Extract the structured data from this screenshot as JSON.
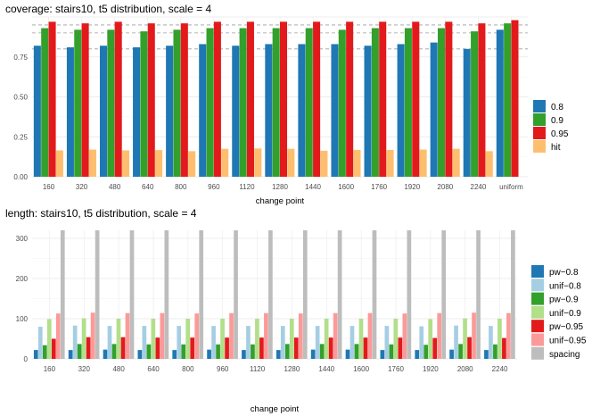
{
  "chart_data": [
    {
      "type": "bar",
      "title": "coverage: stairs10, t5 distribution, scale = 4",
      "xlabel": "change point",
      "ylabel": "",
      "ylim": [
        0,
        1.0
      ],
      "yticks": [
        "0.00",
        "0.25",
        "0.50",
        "0.75"
      ],
      "reference_lines": [
        0.8,
        0.9,
        0.95
      ],
      "categories": [
        "160",
        "320",
        "480",
        "640",
        "800",
        "960",
        "1120",
        "1280",
        "1440",
        "1600",
        "1760",
        "1920",
        "2080",
        "2240",
        "uniform"
      ],
      "series": [
        {
          "name": "0.8",
          "color": "#1f78b4",
          "values": [
            0.82,
            0.81,
            0.82,
            0.81,
            0.82,
            0.83,
            0.82,
            0.83,
            0.83,
            0.83,
            0.82,
            0.83,
            0.84,
            0.8,
            0.92
          ]
        },
        {
          "name": "0.9",
          "color": "#33a02c",
          "values": [
            0.93,
            0.92,
            0.92,
            0.91,
            0.92,
            0.93,
            0.93,
            0.93,
            0.93,
            0.92,
            0.93,
            0.93,
            0.93,
            0.91,
            0.96
          ]
        },
        {
          "name": "0.95",
          "color": "#e31a1c",
          "values": [
            0.97,
            0.96,
            0.97,
            0.96,
            0.96,
            0.97,
            0.97,
            0.97,
            0.97,
            0.97,
            0.97,
            0.97,
            0.97,
            0.96,
            0.98
          ]
        },
        {
          "name": "hit",
          "color": "#fdbf6f",
          "values": [
            0.165,
            0.17,
            0.165,
            0.167,
            0.16,
            0.175,
            0.177,
            0.175,
            0.163,
            0.168,
            0.168,
            0.17,
            0.175,
            0.16,
            0
          ]
        }
      ],
      "legend": "right"
    },
    {
      "type": "bar",
      "title": "length: stairs10, t5 distribution, scale = 4",
      "xlabel": "change point",
      "ylabel": "",
      "ylim": [
        0,
        320
      ],
      "yticks": [
        "0",
        "100",
        "200",
        "300"
      ],
      "categories": [
        "160",
        "320",
        "480",
        "640",
        "800",
        "960",
        "1120",
        "1280",
        "1440",
        "1600",
        "1760",
        "1920",
        "2080",
        "2240"
      ],
      "series": [
        {
          "name": "pw−0.8",
          "color": "#1f78b4",
          "values": [
            22,
            22,
            23,
            22,
            22,
            23,
            22,
            22,
            23,
            23,
            22,
            22,
            23,
            22
          ]
        },
        {
          "name": "unif−0.8",
          "color": "#a6cee3",
          "values": [
            80,
            83,
            82,
            82,
            82,
            82,
            82,
            82,
            82,
            82,
            82,
            81,
            83,
            82
          ]
        },
        {
          "name": "pw−0.9",
          "color": "#33a02c",
          "values": [
            34,
            37,
            37,
            36,
            36,
            36,
            36,
            37,
            37,
            37,
            36,
            35,
            37,
            36
          ]
        },
        {
          "name": "unif−0.9",
          "color": "#b2df8a",
          "values": [
            99,
            101,
            100,
            100,
            100,
            100,
            100,
            100,
            100,
            100,
            100,
            99,
            101,
            100
          ]
        },
        {
          "name": "pw−0.95",
          "color": "#e31a1c",
          "values": [
            50,
            54,
            54,
            53,
            53,
            53,
            53,
            53,
            53,
            53,
            53,
            52,
            54,
            52
          ]
        },
        {
          "name": "unif−0.95",
          "color": "#fb9a99",
          "values": [
            113,
            115,
            114,
            114,
            113,
            114,
            114,
            113,
            114,
            114,
            113,
            114,
            115,
            114
          ]
        },
        {
          "name": "spacing",
          "color": "#bdbdbd",
          "values": [
            320,
            320,
            320,
            320,
            320,
            320,
            320,
            320,
            320,
            320,
            320,
            320,
            320,
            320
          ]
        }
      ],
      "legend": "right"
    }
  ]
}
